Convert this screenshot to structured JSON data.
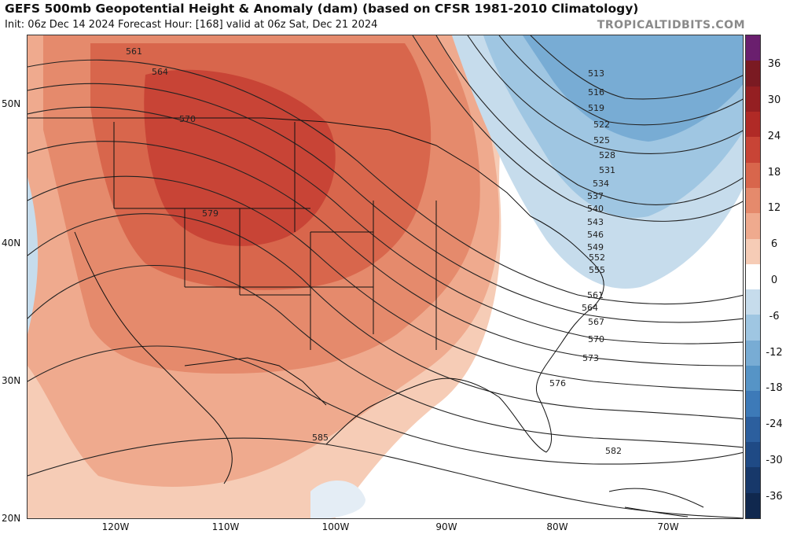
{
  "header": {
    "title": "GEFS 500mb Geopotential Height & Anomaly (dam) (based on CFSR 1981-2010 Climatology)",
    "subtitle": "Init: 06z Dec 14 2024   Forecast Hour: [168]   valid at 06z Sat, Dec 21 2024",
    "brand": "TROPICALTIDBITS.COM"
  },
  "axes": {
    "lat_labels": [
      "50N",
      "40N",
      "30N",
      "20N"
    ],
    "lon_labels": [
      "120W",
      "110W",
      "100W",
      "90W",
      "80W",
      "70W"
    ]
  },
  "colorbar": {
    "labels": [
      "36",
      "30",
      "24",
      "18",
      "12",
      "6",
      "0",
      "-6",
      "-12",
      "-18",
      "-24",
      "-30",
      "-36"
    ],
    "colors": [
      "#6a1f6e",
      "#7a1a22",
      "#941f22",
      "#b02a26",
      "#c84436",
      "#d8664c",
      "#e58a6c",
      "#efaa8e",
      "#f6ccb6",
      "#ffffff",
      "#c6dcec",
      "#9fc6e2",
      "#78acd4",
      "#5694c6",
      "#3d7ab8",
      "#2c5f9e",
      "#1f4a85",
      "#17386a",
      "#10284e"
    ]
  },
  "contours": {
    "labels": [
      "561",
      "564",
      "570",
      "579",
      "585",
      "513",
      "516",
      "519",
      "522",
      "525",
      "528",
      "531",
      "534",
      "537",
      "540",
      "543",
      "546",
      "549",
      "552",
      "555",
      "561",
      "564",
      "567",
      "570",
      "573",
      "576",
      "582"
    ]
  },
  "legend": {
    "anomaly_scale": "dam"
  }
}
